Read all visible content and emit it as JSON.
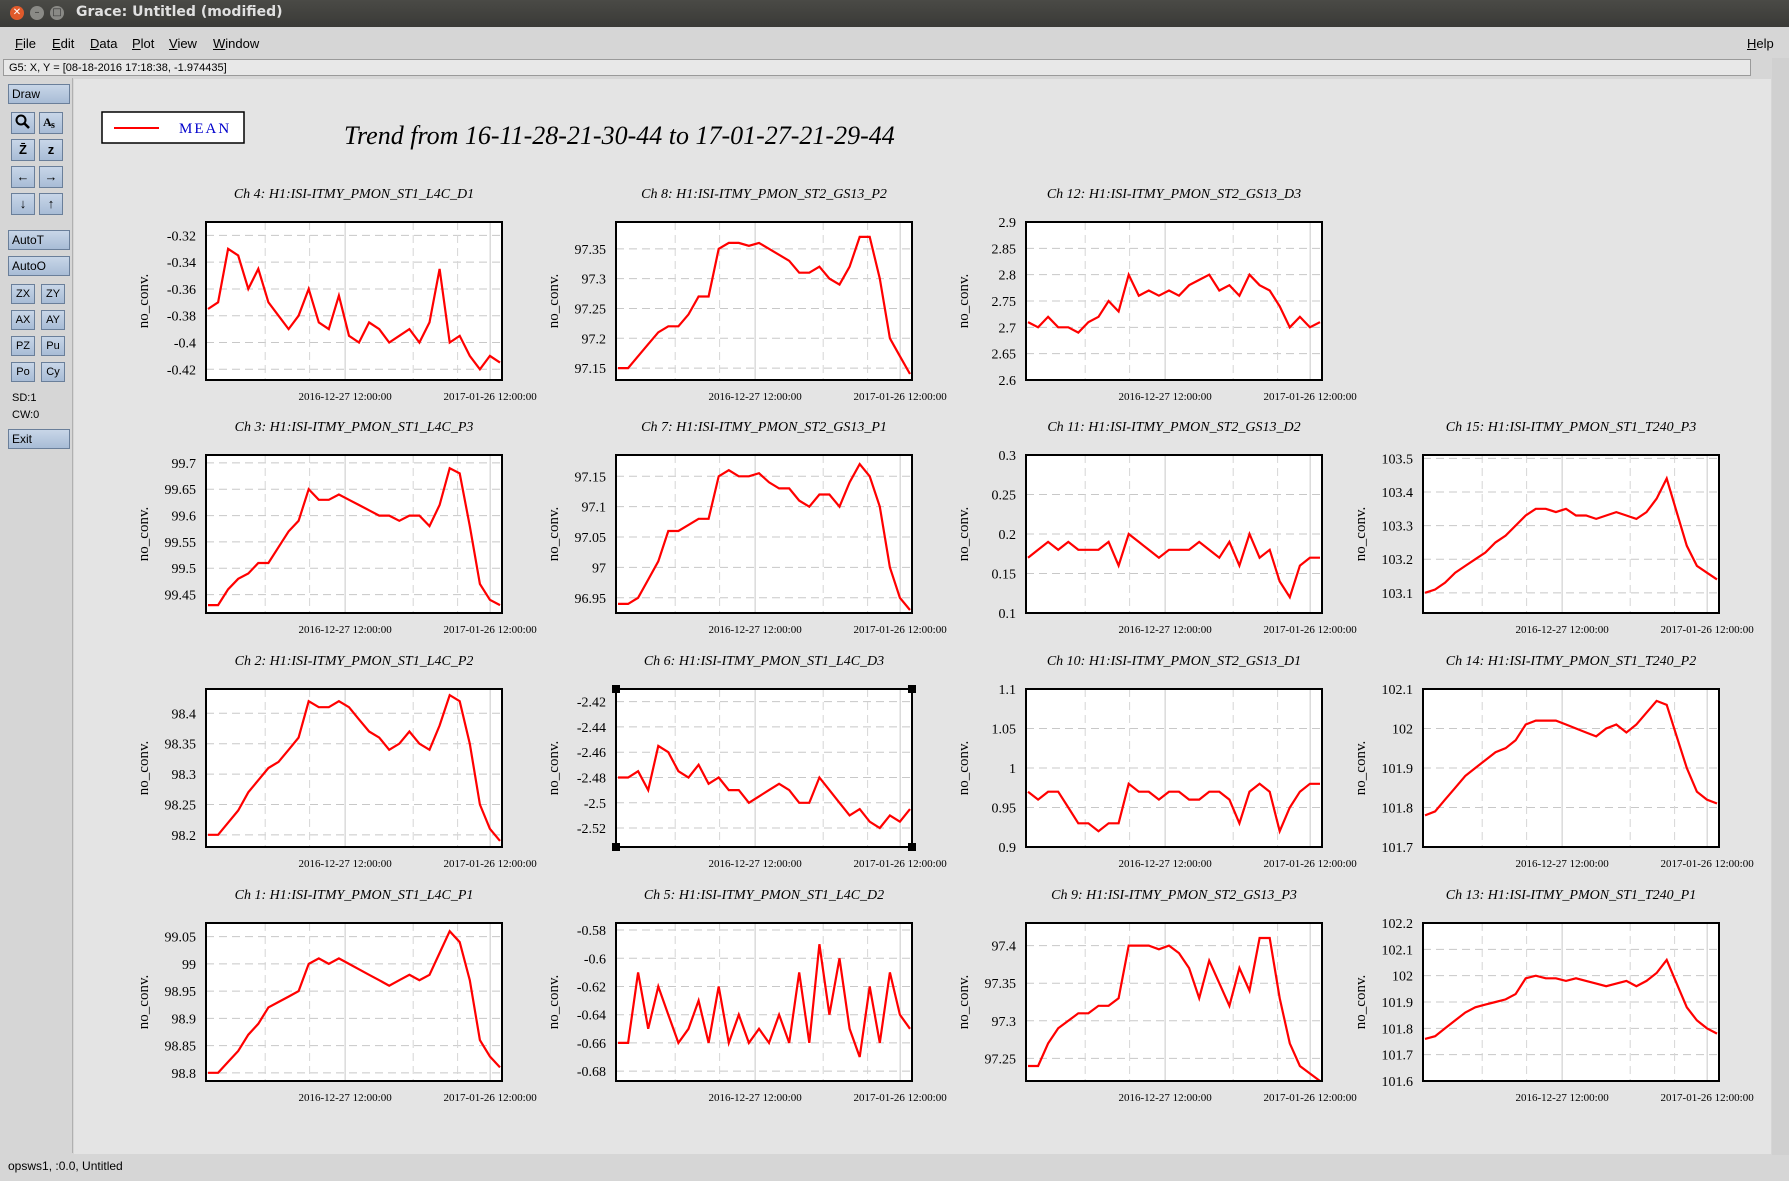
{
  "window": {
    "title": "Grace: Untitled (modified)"
  },
  "menubar": {
    "items": [
      "File",
      "Edit",
      "Data",
      "Plot",
      "View",
      "Window"
    ],
    "help": "Help"
  },
  "coord_readout": "G5: X, Y = [08-18-2016 17:18:38, -1.974435]",
  "sidebar": {
    "draw": "Draw",
    "icons": [
      "zoom-icon",
      "autoscale-text-icon",
      "zoom-xy-icon",
      "zoom-z-icon",
      "arrow-left-icon",
      "arrow-right-icon",
      "arrow-down-icon",
      "arrow-up-icon"
    ],
    "autot": "AutoT",
    "autoo": "AutoO",
    "tools": [
      "ZX",
      "ZY",
      "AX",
      "AY",
      "PZ",
      "Pu",
      "Po",
      "Cy"
    ],
    "sd": "SD:1",
    "cw": "CW:0",
    "exit": "Exit"
  },
  "status": "opsws1, :0.0, Untitled",
  "legend": {
    "label": "MEAN",
    "color": "#ff0000"
  },
  "figure_title": "Trend from 16-11-28-21-30-44 to 17-01-27-21-29-44",
  "colors": {
    "series": "#ff0000",
    "legend_text": "#0000cc"
  },
  "chart_data": [
    {
      "type": "line",
      "title": "Ch 4: H1:ISI-ITMY_PMON_ST1_L4C_D1",
      "ylabel": "no_conv.",
      "yticks": [
        "-0.32",
        "-0.34",
        "-0.36",
        "-0.38",
        "-0.4",
        "-0.42"
      ],
      "ylim": [
        -0.428,
        -0.31
      ],
      "xticks": [
        "2016-12-27 12:00:00",
        "2017-01-26 12:00:00"
      ],
      "y": [
        -0.375,
        -0.37,
        -0.33,
        -0.335,
        -0.36,
        -0.345,
        -0.37,
        -0.38,
        -0.39,
        -0.38,
        -0.36,
        -0.385,
        -0.39,
        -0.365,
        -0.395,
        -0.4,
        -0.385,
        -0.39,
        -0.4,
        -0.395,
        -0.39,
        -0.4,
        -0.385,
        -0.345,
        -0.4,
        -0.395,
        -0.41,
        -0.42,
        -0.41,
        -0.415
      ]
    },
    {
      "type": "line",
      "title": "Ch 8: H1:ISI-ITMY_PMON_ST2_GS13_P2",
      "ylabel": "no_conv.",
      "yticks": [
        "97.35",
        "97.3",
        "97.25",
        "97.2",
        "97.15"
      ],
      "ylim": [
        97.13,
        97.395
      ],
      "xticks": [
        "2016-12-27 12:00:00",
        "2017-01-26 12:00:00"
      ],
      "y": [
        97.15,
        97.15,
        97.17,
        97.19,
        97.21,
        97.22,
        97.22,
        97.24,
        97.27,
        97.27,
        97.35,
        97.36,
        97.36,
        97.355,
        97.36,
        97.35,
        97.34,
        97.33,
        97.31,
        97.31,
        97.32,
        97.3,
        97.29,
        97.32,
        97.37,
        97.37,
        97.3,
        97.2,
        97.17,
        97.14
      ]
    },
    {
      "type": "line",
      "title": "Ch 12: H1:ISI-ITMY_PMON_ST2_GS13_D3",
      "ylabel": "no_conv.",
      "yticks": [
        "2.9",
        "2.85",
        "2.8",
        "2.75",
        "2.7",
        "2.65",
        "2.6"
      ],
      "ylim": [
        2.6,
        2.9
      ],
      "xticks": [
        "2016-12-27 12:00:00",
        "2017-01-26 12:00:00"
      ],
      "y": [
        2.71,
        2.7,
        2.72,
        2.7,
        2.7,
        2.69,
        2.71,
        2.72,
        2.75,
        2.73,
        2.8,
        2.76,
        2.77,
        2.76,
        2.77,
        2.76,
        2.78,
        2.79,
        2.8,
        2.77,
        2.78,
        2.76,
        2.8,
        2.78,
        2.77,
        2.74,
        2.7,
        2.72,
        2.7,
        2.71
      ]
    },
    {
      "type": "line",
      "title": "Ch 3: H1:ISI-ITMY_PMON_ST1_L4C_P3",
      "ylabel": "no_conv.",
      "yticks": [
        "99.7",
        "99.65",
        "99.6",
        "99.55",
        "99.5",
        "99.45"
      ],
      "ylim": [
        99.415,
        99.715
      ],
      "xticks": [
        "2016-12-27 12:00:00",
        "2017-01-26 12:00:00"
      ],
      "y": [
        99.43,
        99.43,
        99.46,
        99.48,
        99.49,
        99.51,
        99.51,
        99.54,
        99.57,
        99.59,
        99.65,
        99.63,
        99.63,
        99.64,
        99.63,
        99.62,
        99.61,
        99.6,
        99.6,
        99.59,
        99.6,
        99.6,
        99.58,
        99.62,
        99.69,
        99.68,
        99.58,
        99.47,
        99.44,
        99.43
      ]
    },
    {
      "type": "line",
      "title": "Ch 7: H1:ISI-ITMY_PMON_ST2_GS13_P1",
      "ylabel": "no_conv.",
      "yticks": [
        "97.15",
        "97.1",
        "97.05",
        "97",
        "96.95"
      ],
      "ylim": [
        96.925,
        97.185
      ],
      "xticks": [
        "2016-12-27 12:00:00",
        "2017-01-26 12:00:00"
      ],
      "y": [
        96.94,
        96.94,
        96.95,
        96.98,
        97.01,
        97.06,
        97.06,
        97.07,
        97.08,
        97.08,
        97.15,
        97.16,
        97.15,
        97.15,
        97.155,
        97.14,
        97.13,
        97.13,
        97.11,
        97.1,
        97.12,
        97.12,
        97.1,
        97.14,
        97.17,
        97.15,
        97.1,
        97.0,
        96.95,
        96.93
      ]
    },
    {
      "type": "line",
      "title": "Ch 11: H1:ISI-ITMY_PMON_ST2_GS13_D2",
      "ylabel": "no_conv.",
      "yticks": [
        "0.3",
        "0.25",
        "0.2",
        "0.15",
        "0.1"
      ],
      "ylim": [
        0.1,
        0.3
      ],
      "xticks": [
        "2016-12-27 12:00:00",
        "2017-01-26 12:00:00"
      ],
      "y": [
        0.17,
        0.18,
        0.19,
        0.18,
        0.19,
        0.18,
        0.18,
        0.18,
        0.19,
        0.16,
        0.2,
        0.19,
        0.18,
        0.17,
        0.18,
        0.18,
        0.18,
        0.19,
        0.18,
        0.17,
        0.19,
        0.16,
        0.2,
        0.17,
        0.18,
        0.14,
        0.12,
        0.16,
        0.17,
        0.17
      ]
    },
    {
      "type": "line",
      "title": "Ch 15: H1:ISI-ITMY_PMON_ST1_T240_P3",
      "ylabel": "no_conv.",
      "yticks": [
        "103.5",
        "103.4",
        "103.3",
        "103.2",
        "103.1"
      ],
      "ylim": [
        103.04,
        103.51
      ],
      "xticks": [
        "2016-12-27 12:00:00",
        "2017-01-26 12:00:00"
      ],
      "y": [
        103.1,
        103.11,
        103.13,
        103.16,
        103.18,
        103.2,
        103.22,
        103.25,
        103.27,
        103.3,
        103.33,
        103.35,
        103.35,
        103.34,
        103.35,
        103.33,
        103.33,
        103.32,
        103.33,
        103.34,
        103.33,
        103.32,
        103.34,
        103.38,
        103.44,
        103.34,
        103.24,
        103.18,
        103.16,
        103.14
      ]
    },
    {
      "type": "line",
      "title": "Ch 2: H1:ISI-ITMY_PMON_ST1_L4C_P2",
      "ylabel": "no_conv.",
      "yticks": [
        "98.4",
        "98.35",
        "98.3",
        "98.25",
        "98.2"
      ],
      "ylim": [
        98.18,
        98.44
      ],
      "xticks": [
        "2016-12-27 12:00:00",
        "2017-01-26 12:00:00"
      ],
      "y": [
        98.2,
        98.2,
        98.22,
        98.24,
        98.27,
        98.29,
        98.31,
        98.32,
        98.34,
        98.36,
        98.42,
        98.41,
        98.41,
        98.42,
        98.41,
        98.39,
        98.37,
        98.36,
        98.34,
        98.35,
        98.37,
        98.35,
        98.34,
        98.38,
        98.43,
        98.42,
        98.35,
        98.25,
        98.21,
        98.19
      ]
    },
    {
      "type": "line",
      "title": "Ch 6: H1:ISI-ITMY_PMON_ST1_L4C_D3",
      "ylabel": "no_conv.",
      "yticks": [
        "-2.42",
        "-2.44",
        "-2.46",
        "-2.48",
        "-2.5",
        "-2.52"
      ],
      "ylim": [
        -2.535,
        -2.41
      ],
      "xticks": [
        "2016-12-27 12:00:00",
        "2017-01-26 12:00:00"
      ],
      "y": [
        -2.48,
        -2.48,
        -2.475,
        -2.49,
        -2.455,
        -2.46,
        -2.475,
        -2.48,
        -2.47,
        -2.485,
        -2.48,
        -2.49,
        -2.49,
        -2.5,
        -2.495,
        -2.49,
        -2.485,
        -2.49,
        -2.5,
        -2.5,
        -2.48,
        -2.49,
        -2.5,
        -2.51,
        -2.505,
        -2.515,
        -2.52,
        -2.51,
        -2.515,
        -2.505
      ]
    },
    {
      "type": "line",
      "title": "Ch 10: H1:ISI-ITMY_PMON_ST2_GS13_D1",
      "ylabel": "no_conv.",
      "yticks": [
        "1.1",
        "1.05",
        "1",
        "0.95",
        "0.9"
      ],
      "ylim": [
        0.9,
        1.1
      ],
      "xticks": [
        "2016-12-27 12:00:00",
        "2017-01-26 12:00:00"
      ],
      "y": [
        0.97,
        0.96,
        0.97,
        0.97,
        0.95,
        0.93,
        0.93,
        0.92,
        0.93,
        0.93,
        0.98,
        0.97,
        0.97,
        0.96,
        0.97,
        0.97,
        0.96,
        0.96,
        0.97,
        0.97,
        0.96,
        0.93,
        0.97,
        0.98,
        0.97,
        0.92,
        0.95,
        0.97,
        0.98,
        0.98
      ]
    },
    {
      "type": "line",
      "title": "Ch 14: H1:ISI-ITMY_PMON_ST1_T240_P2",
      "ylabel": "no_conv.",
      "yticks": [
        "102.1",
        "102",
        "101.9",
        "101.8",
        "101.7"
      ],
      "ylim": [
        101.7,
        102.1
      ],
      "xticks": [
        "2016-12-27 12:00:00",
        "2017-01-26 12:00:00"
      ],
      "y": [
        101.78,
        101.79,
        101.82,
        101.85,
        101.88,
        101.9,
        101.92,
        101.94,
        101.95,
        101.97,
        102.01,
        102.02,
        102.02,
        102.02,
        102.01,
        102.0,
        101.99,
        101.98,
        102.0,
        102.01,
        101.99,
        102.01,
        102.04,
        102.07,
        102.06,
        101.98,
        101.9,
        101.84,
        101.82,
        101.81
      ]
    },
    {
      "type": "line",
      "title": "Ch 1: H1:ISI-ITMY_PMON_ST1_L4C_P1",
      "ylabel": "no_conv.",
      "yticks": [
        "99.05",
        "99",
        "98.95",
        "98.9",
        "98.85",
        "98.8"
      ],
      "ylim": [
        98.785,
        99.075
      ],
      "xticks": [
        "2016-12-27 12:00:00",
        "2017-01-26 12:00:00"
      ],
      "y": [
        98.8,
        98.8,
        98.82,
        98.84,
        98.87,
        98.89,
        98.92,
        98.93,
        98.94,
        98.95,
        99.0,
        99.01,
        99.0,
        99.01,
        99.0,
        98.99,
        98.98,
        98.97,
        98.96,
        98.97,
        98.98,
        98.97,
        98.98,
        99.02,
        99.06,
        99.04,
        98.97,
        98.86,
        98.83,
        98.81
      ]
    },
    {
      "type": "line",
      "title": "Ch 5: H1:ISI-ITMY_PMON_ST1_L4C_D2",
      "ylabel": "no_conv.",
      "yticks": [
        "-0.58",
        "-0.6",
        "-0.62",
        "-0.64",
        "-0.66",
        "-0.68"
      ],
      "ylim": [
        -0.687,
        -0.575
      ],
      "xticks": [
        "2016-12-27 12:00:00",
        "2017-01-26 12:00:00"
      ],
      "y": [
        -0.66,
        -0.66,
        -0.61,
        -0.65,
        -0.62,
        -0.64,
        -0.66,
        -0.65,
        -0.63,
        -0.66,
        -0.62,
        -0.66,
        -0.64,
        -0.66,
        -0.65,
        -0.66,
        -0.64,
        -0.66,
        -0.61,
        -0.66,
        -0.59,
        -0.64,
        -0.6,
        -0.65,
        -0.67,
        -0.62,
        -0.66,
        -0.61,
        -0.64,
        -0.65
      ]
    },
    {
      "type": "line",
      "title": "Ch 9: H1:ISI-ITMY_PMON_ST2_GS13_P3",
      "ylabel": "no_conv.",
      "yticks": [
        "97.4",
        "97.35",
        "97.3",
        "97.25"
      ],
      "ylim": [
        97.22,
        97.43
      ],
      "xticks": [
        "2016-12-27 12:00:00",
        "2017-01-26 12:00:00"
      ],
      "y": [
        97.24,
        97.24,
        97.27,
        97.29,
        97.3,
        97.31,
        97.31,
        97.32,
        97.32,
        97.33,
        97.4,
        97.4,
        97.4,
        97.395,
        97.4,
        97.39,
        97.37,
        97.33,
        97.38,
        97.35,
        97.32,
        97.37,
        97.34,
        97.41,
        97.41,
        97.33,
        97.27,
        97.24,
        97.23,
        97.22
      ]
    },
    {
      "type": "line",
      "title": "Ch 13: H1:ISI-ITMY_PMON_ST1_T240_P1",
      "ylabel": "no_conv.",
      "yticks": [
        "102.2",
        "102.1",
        "102",
        "101.9",
        "101.8",
        "101.7",
        "101.6"
      ],
      "ylim": [
        101.6,
        102.2
      ],
      "xticks": [
        "2016-12-27 12:00:00",
        "2017-01-26 12:00:00"
      ],
      "y": [
        101.76,
        101.77,
        101.8,
        101.83,
        101.86,
        101.88,
        101.89,
        101.9,
        101.91,
        101.93,
        101.99,
        102.0,
        101.99,
        101.99,
        101.98,
        101.99,
        101.98,
        101.97,
        101.96,
        101.97,
        101.98,
        101.96,
        101.98,
        102.01,
        102.06,
        101.97,
        101.88,
        101.83,
        101.8,
        101.78
      ]
    }
  ]
}
